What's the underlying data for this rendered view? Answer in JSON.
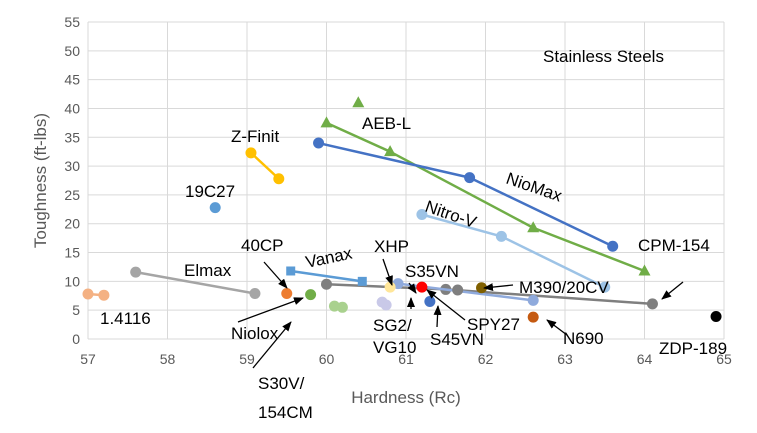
{
  "chart_data": {
    "type": "scatter",
    "title": "Stainless Steels",
    "xlabel": "Hardness (Rc)",
    "ylabel": "Toughness (ft-lbs)",
    "xlim": [
      57,
      65
    ],
    "ylim": [
      0,
      55
    ],
    "xticks": [
      "57",
      "58",
      "59",
      "60",
      "61",
      "62",
      "63",
      "64",
      "65"
    ],
    "yticks": [
      "0",
      "5",
      "10",
      "15",
      "20",
      "25",
      "30",
      "35",
      "40",
      "45",
      "50",
      "55"
    ],
    "grid": true,
    "series": [
      {
        "name": "AEB-L",
        "color": "#70ad47",
        "marker": "triangle",
        "line": true,
        "points": [
          [
            60.0,
            37.5
          ],
          [
            60.8,
            32.5
          ],
          [
            62.6,
            19.3
          ],
          [
            64.0,
            11.8
          ]
        ]
      },
      {
        "name": "AEB-L",
        "color": "#70ad47",
        "marker": "triangle",
        "line": false,
        "points": [
          [
            60.4,
            41.0
          ]
        ]
      },
      {
        "name": "NioMax",
        "color": "#4472c4",
        "marker": "circle",
        "line": true,
        "points": [
          [
            59.9,
            34.0
          ],
          [
            61.8,
            28.0
          ],
          [
            63.6,
            16.1
          ]
        ]
      },
      {
        "name": "Z-Finit",
        "color": "#ffc000",
        "marker": "circle",
        "line": true,
        "points": [
          [
            59.05,
            32.3
          ],
          [
            59.4,
            27.8
          ]
        ]
      },
      {
        "name": "19C27",
        "color": "#5b9bd5",
        "marker": "circle",
        "line": false,
        "points": [
          [
            58.6,
            22.8
          ]
        ]
      },
      {
        "name": "Nitro-V",
        "color": "#9dc3e6",
        "marker": "circle",
        "line": true,
        "points": [
          [
            61.2,
            21.6
          ],
          [
            62.2,
            17.8
          ],
          [
            63.5,
            9.0
          ]
        ]
      },
      {
        "name": "CPM-154",
        "color": "#7f7f7f",
        "marker": "circle",
        "line": true,
        "points": [
          [
            60.0,
            9.5
          ],
          [
            61.5,
            8.6
          ],
          [
            64.1,
            6.1
          ]
        ]
      },
      {
        "name": "Elmax",
        "color": "#a5a5a5",
        "marker": "circle",
        "line": true,
        "points": [
          [
            57.6,
            11.6
          ],
          [
            59.1,
            7.9
          ]
        ]
      },
      {
        "name": "Vanax",
        "color": "#5b9bd5",
        "marker": "square",
        "line": true,
        "points": [
          [
            59.55,
            11.8
          ],
          [
            60.45,
            10.0
          ]
        ]
      },
      {
        "name": "M390/20CV",
        "color": "#8faadc",
        "marker": "circle",
        "line": true,
        "points": [
          [
            60.9,
            9.6
          ],
          [
            62.6,
            6.7
          ]
        ]
      },
      {
        "name": "1.4116",
        "color": "#f4b183",
        "marker": "circle",
        "line": true,
        "points": [
          [
            57.0,
            7.8
          ],
          [
            57.2,
            7.6
          ]
        ]
      },
      {
        "name": "40CP",
        "color": "#ed7d31",
        "marker": "circle",
        "line": false,
        "points": [
          [
            59.5,
            7.9
          ]
        ]
      },
      {
        "name": "Niolox",
        "color": "#70ad47",
        "marker": "circle",
        "line": false,
        "points": [
          [
            59.8,
            7.7
          ]
        ]
      },
      {
        "name": "S30V/154CM",
        "color": "#a9d18e",
        "marker": "circle",
        "line": false,
        "points": [
          [
            60.1,
            5.7
          ],
          [
            60.2,
            5.5
          ]
        ]
      },
      {
        "name": "SG2/VG10",
        "color": "#c9c9e8",
        "marker": "circle",
        "line": false,
        "points": [
          [
            60.7,
            6.4
          ],
          [
            60.75,
            5.9
          ]
        ]
      },
      {
        "name": "XHP",
        "color": "#ffe699",
        "marker": "circle",
        "line": false,
        "points": [
          [
            60.8,
            9.0
          ]
        ]
      },
      {
        "name": "S35VN",
        "color": "#ff0000",
        "marker": "circle",
        "line": false,
        "points": [
          [
            61.2,
            9.0
          ]
        ]
      },
      {
        "name": "S45VN",
        "color": "#4472c4",
        "marker": "circle",
        "line": false,
        "points": [
          [
            61.3,
            6.5
          ]
        ]
      },
      {
        "name": "SPY27",
        "color": "#7f7f7f",
        "marker": "circle",
        "line": false,
        "points": [
          [
            61.65,
            8.5
          ]
        ]
      },
      {
        "name": "M390/20CV",
        "color": "#806000",
        "marker": "circle",
        "line": false,
        "points": [
          [
            61.95,
            8.9
          ]
        ]
      },
      {
        "name": "N690",
        "color": "#c55a11",
        "marker": "circle",
        "line": false,
        "points": [
          [
            62.6,
            3.8
          ]
        ]
      },
      {
        "name": "ZDP-189",
        "color": "#000000",
        "marker": "circle",
        "line": false,
        "points": [
          [
            64.9,
            3.9
          ]
        ]
      }
    ],
    "annotations": [
      {
        "text": "Stainless Steels"
      },
      {
        "text": "AEB-L"
      },
      {
        "text": "Z-Finit"
      },
      {
        "text": "NioMax"
      },
      {
        "text": "19C27"
      },
      {
        "text": "Nitro-V"
      },
      {
        "text": "XHP"
      },
      {
        "text": "40CP"
      },
      {
        "text": "Vanax"
      },
      {
        "text": "CPM-154"
      },
      {
        "text": "Elmax"
      },
      {
        "text": "S35VN"
      },
      {
        "text": "M390/20CV"
      },
      {
        "text": "1.4116"
      },
      {
        "text": "SPY27"
      },
      {
        "text": "Niolox"
      },
      {
        "text": "SG2/"
      },
      {
        "text": "VG10"
      },
      {
        "text": "N690"
      },
      {
        "text": "S45VN"
      },
      {
        "text": "ZDP-189"
      },
      {
        "text": "S30V/"
      },
      {
        "text": "154CM"
      }
    ]
  }
}
